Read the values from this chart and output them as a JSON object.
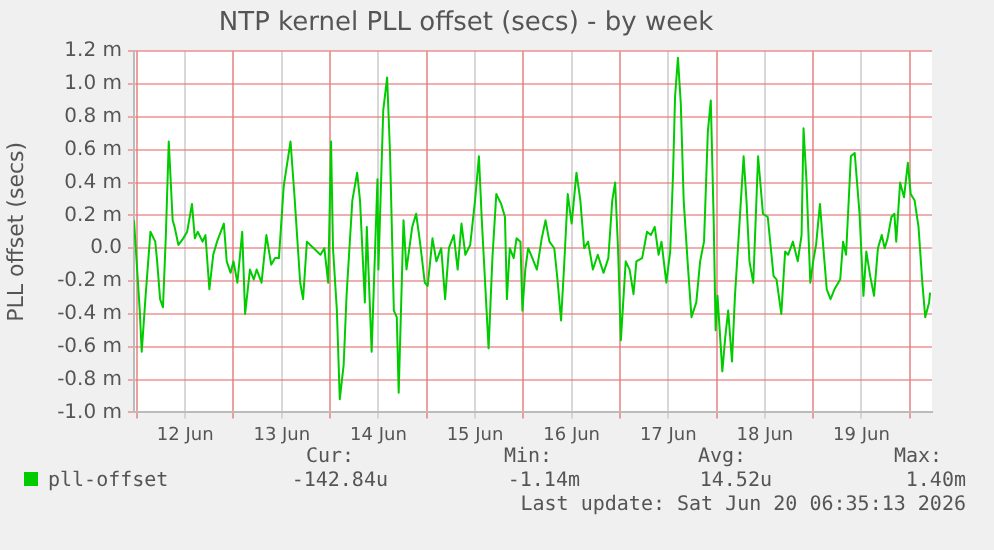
{
  "chart_data": {
    "type": "line",
    "title": "NTP kernel PLL offset (secs) - by week",
    "ylabel": "PLL offset (secs)",
    "xlim": [
      "2026-06-11T23:17",
      "2026-06-20T05:31"
    ],
    "xticks": [
      {
        "value": "2026-06-12T00:00",
        "label": null
      },
      {
        "value": "2026-06-12T12:00",
        "label": "12 Jun"
      },
      {
        "value": "2026-06-13T00:00",
        "label": null
      },
      {
        "value": "2026-06-13T12:00",
        "label": "13 Jun"
      },
      {
        "value": "2026-06-14T00:00",
        "label": null
      },
      {
        "value": "2026-06-14T12:00",
        "label": "14 Jun"
      },
      {
        "value": "2026-06-15T00:00",
        "label": null
      },
      {
        "value": "2026-06-15T12:00",
        "label": "15 Jun"
      },
      {
        "value": "2026-06-16T00:00",
        "label": null
      },
      {
        "value": "2026-06-16T12:00",
        "label": "16 Jun"
      },
      {
        "value": "2026-06-17T00:00",
        "label": null
      },
      {
        "value": "2026-06-17T12:00",
        "label": "17 Jun"
      },
      {
        "value": "2026-06-18T00:00",
        "label": null
      },
      {
        "value": "2026-06-18T12:00",
        "label": "18 Jun"
      },
      {
        "value": "2026-06-19T00:00",
        "label": null
      },
      {
        "value": "2026-06-19T12:00",
        "label": "19 Jun"
      },
      {
        "value": "2026-06-20T00:00",
        "label": null
      }
    ],
    "ylim": [
      -1.0,
      1.2
    ],
    "yticks": [
      {
        "value": -1.0,
        "label": "-1.0 m"
      },
      {
        "value": -0.8,
        "label": "-0.8 m"
      },
      {
        "value": -0.6,
        "label": "-0.6 m"
      },
      {
        "value": -0.4,
        "label": "-0.4 m"
      },
      {
        "value": -0.2,
        "label": "-0.2 m"
      },
      {
        "value": 0,
        "label": "0.0"
      },
      {
        "value": 0.2,
        "label": "0.2 m"
      },
      {
        "value": 0.4,
        "label": "0.4 m"
      },
      {
        "value": 0.6,
        "label": "0.6 m"
      },
      {
        "value": 0.8,
        "label": "0.8 m"
      },
      {
        "value": 1.0,
        "label": "1.0 m"
      },
      {
        "value": 1.2,
        "label": "1.2 m"
      }
    ],
    "grid": true,
    "legend": "bottom",
    "marker": "none",
    "line_style": "solid",
    "annotations": [
      "Cur:",
      "Min:",
      "Avg:",
      "Max:",
      "-142.84u",
      "-1.14m",
      "14.52u",
      "1.40m",
      "Last update: Sat Jun 20 06:35:13 2026"
    ],
    "series": [
      {
        "name": "pll-offset",
        "color": "#00cc00",
        "x": [
          "2026-06-11T23:17",
          "2026-06-12T00:43",
          "2026-06-12T01:12",
          "2026-06-12T02:10",
          "2026-06-12T03:22",
          "2026-06-12T04:34",
          "2026-06-12T05:02",
          "2026-06-12T05:46",
          "2026-06-12T06:29",
          "2026-06-12T07:12",
          "2026-06-12T07:55",
          "2026-06-12T08:53",
          "2026-06-12T09:22",
          "2026-06-12T10:19",
          "2026-06-12T11:31",
          "2026-06-12T12:29",
          "2026-06-12T13:41",
          "2026-06-12T14:24",
          "2026-06-12T15:07",
          "2026-06-12T16:19",
          "2026-06-12T17:02",
          "2026-06-12T18:00",
          "2026-06-12T18:58",
          "2026-06-12T19:55",
          "2026-06-12T21:36",
          "2026-06-12T22:19",
          "2026-06-12T23:17",
          "2026-06-13T00:00",
          "2026-06-13T00:58",
          "2026-06-13T02:10",
          "2026-06-13T02:53",
          "2026-06-13T04:05",
          "2026-06-13T05:02",
          "2026-06-13T05:46",
          "2026-06-13T06:58",
          "2026-06-13T08:10",
          "2026-06-13T09:22",
          "2026-06-13T10:19",
          "2026-06-13T11:17",
          "2026-06-13T12:29",
          "2026-06-13T14:10",
          "2026-06-13T15:07",
          "2026-06-13T16:34",
          "2026-06-13T17:17",
          "2026-06-13T18:14",
          "2026-06-13T19:55",
          "2026-06-13T21:36",
          "2026-06-13T22:34",
          "2026-06-13T23:31",
          "2026-06-14T00:14",
          "2026-06-14T00:43",
          "2026-06-14T01:41",
          "2026-06-14T02:24",
          "2026-06-14T03:22",
          "2026-06-14T04:05",
          "2026-06-14T05:31",
          "2026-06-14T06:43",
          "2026-06-14T07:26",
          "2026-06-14T08:38",
          "2026-06-14T09:07",
          "2026-06-14T10:19",
          "2026-06-14T11:46",
          "2026-06-14T12:00",
          "2026-06-14T13:12",
          "2026-06-14T14:10",
          "2026-06-14T14:53",
          "2026-06-14T15:50",
          "2026-06-14T16:34",
          "2026-06-14T17:02",
          "2026-06-14T18:14",
          "2026-06-14T18:58",
          "2026-06-14T20:24",
          "2026-06-14T21:22",
          "2026-06-14T22:19",
          "2026-06-14T23:31",
          "2026-06-15T00:14",
          "2026-06-15T01:26",
          "2026-06-15T02:24",
          "2026-06-15T03:36",
          "2026-06-15T04:34",
          "2026-06-15T05:31",
          "2026-06-15T06:43",
          "2026-06-15T07:41",
          "2026-06-15T08:38",
          "2026-06-15T09:36",
          "2026-06-15T10:48",
          "2026-06-15T12:00",
          "2026-06-15T12:58",
          "2026-06-15T13:41",
          "2026-06-15T15:22",
          "2026-06-15T16:19",
          "2026-06-15T17:17",
          "2026-06-15T18:29",
          "2026-06-15T19:26",
          "2026-06-15T19:55",
          "2026-06-15T20:38",
          "2026-06-15T21:36",
          "2026-06-15T22:19",
          "2026-06-15T23:17",
          "2026-06-15T23:46",
          "2026-06-16T00:29",
          "2026-06-16T01:12",
          "2026-06-16T01:55",
          "2026-06-16T03:22",
          "2026-06-16T04:34",
          "2026-06-16T05:31",
          "2026-06-16T06:29",
          "2026-06-16T07:41",
          "2026-06-16T08:24",
          "2026-06-16T09:22",
          "2026-06-16T10:05",
          "2026-06-16T11:02",
          "2026-06-16T12:00",
          "2026-06-16T13:12",
          "2026-06-16T14:10",
          "2026-06-16T15:07",
          "2026-06-16T16:05",
          "2026-06-16T17:17",
          "2026-06-16T18:29",
          "2026-06-16T19:55",
          "2026-06-16T21:07",
          "2026-06-16T22:05",
          "2026-06-16T22:48",
          "2026-06-16T23:31",
          "2026-06-17T00:14",
          "2026-06-17T01:26",
          "2026-06-17T02:24",
          "2026-06-17T03:22",
          "2026-06-17T04:05",
          "2026-06-17T05:31",
          "2026-06-17T06:43",
          "2026-06-17T07:41",
          "2026-06-17T08:38",
          "2026-06-17T09:36",
          "2026-06-17T10:19",
          "2026-06-17T11:31",
          "2026-06-17T12:29",
          "2026-06-17T13:12",
          "2026-06-17T13:41",
          "2026-06-17T14:24",
          "2026-06-17T15:07",
          "2026-06-17T15:50",
          "2026-06-17T16:48",
          "2026-06-17T17:46",
          "2026-06-17T18:58",
          "2026-06-17T19:55",
          "2026-06-17T20:53",
          "2026-06-17T21:50",
          "2026-06-17T22:34",
          "2026-06-17T23:17",
          "2026-06-17T23:46",
          "2026-06-18T00:14",
          "2026-06-18T01:26",
          "2026-06-18T02:10",
          "2026-06-18T02:53",
          "2026-06-18T03:50",
          "2026-06-18T04:34",
          "2026-06-18T05:31",
          "2026-06-18T06:43",
          "2026-06-18T07:26",
          "2026-06-18T08:10",
          "2026-06-18T09:07",
          "2026-06-18T10:19",
          "2026-06-18T11:31",
          "2026-06-18T12:43",
          "2026-06-18T14:10",
          "2026-06-18T14:53",
          "2026-06-18T16:05",
          "2026-06-18T17:02",
          "2026-06-18T17:46",
          "2026-06-18T18:58",
          "2026-06-18T20:10",
          "2026-06-18T21:07",
          "2026-06-18T21:36",
          "2026-06-18T22:19",
          "2026-06-18T23:17",
          "2026-06-19T00:00",
          "2026-06-19T00:43",
          "2026-06-19T01:41",
          "2026-06-19T02:24",
          "2026-06-19T03:22",
          "2026-06-19T04:19",
          "2026-06-19T05:17",
          "2026-06-19T06:43",
          "2026-06-19T07:26",
          "2026-06-19T08:10",
          "2026-06-19T09:22",
          "2026-06-19T10:19",
          "2026-06-19T11:31",
          "2026-06-19T12:29",
          "2026-06-19T13:12",
          "2026-06-19T14:10",
          "2026-06-19T15:07",
          "2026-06-19T16:05",
          "2026-06-19T17:02",
          "2026-06-19T17:46",
          "2026-06-19T18:29",
          "2026-06-19T19:26",
          "2026-06-19T20:10",
          "2026-06-19T20:38",
          "2026-06-19T21:36",
          "2026-06-19T22:34",
          "2026-06-19T23:31",
          "2026-06-20T00:14",
          "2026-06-20T01:12",
          "2026-06-20T02:10",
          "2026-06-20T03:07",
          "2026-06-20T03:50",
          "2026-06-20T04:48",
          "2026-06-20T05:02"
        ],
        "values": [
          0.17,
          -0.38,
          -0.63,
          -0.29,
          0.1,
          0.04,
          -0.08,
          -0.31,
          -0.36,
          0.08,
          0.65,
          0.17,
          0.13,
          0.02,
          0.06,
          0.1,
          0.27,
          0.06,
          0.1,
          0.04,
          0.08,
          -0.25,
          -0.04,
          0.04,
          0.15,
          -0.08,
          -0.15,
          -0.08,
          -0.21,
          0.1,
          -0.4,
          -0.13,
          -0.19,
          -0.13,
          -0.21,
          0.08,
          -0.1,
          -0.06,
          -0.06,
          0.38,
          0.65,
          0.33,
          -0.21,
          -0.31,
          0.04,
          0.0,
          -0.04,
          0.0,
          -0.21,
          0.65,
          0.0,
          -0.38,
          -0.92,
          -0.71,
          -0.29,
          0.29,
          0.46,
          0.29,
          -0.33,
          0.13,
          -0.63,
          0.42,
          -0.13,
          0.84,
          1.04,
          0.58,
          -0.38,
          -0.42,
          -0.88,
          0.17,
          -0.13,
          0.13,
          0.21,
          0.04,
          -0.21,
          -0.23,
          0.06,
          -0.08,
          0.0,
          -0.31,
          0.0,
          0.08,
          -0.13,
          0.15,
          -0.04,
          0.02,
          0.29,
          0.56,
          0.17,
          -0.61,
          -0.06,
          0.33,
          0.27,
          0.19,
          -0.31,
          0.0,
          -0.06,
          0.06,
          0.04,
          -0.38,
          -0.13,
          0.0,
          -0.04,
          -0.13,
          0.06,
          0.17,
          0.04,
          0.0,
          -0.17,
          -0.44,
          -0.13,
          0.33,
          0.15,
          0.46,
          0.29,
          0.0,
          0.04,
          -0.13,
          -0.04,
          -0.15,
          -0.06,
          0.29,
          0.4,
          0.0,
          -0.56,
          -0.08,
          -0.13,
          -0.28,
          -0.08,
          -0.06,
          0.1,
          0.08,
          0.13,
          -0.04,
          0.04,
          -0.21,
          -0.02,
          0.46,
          0.92,
          1.16,
          0.88,
          0.29,
          -0.08,
          -0.42,
          -0.33,
          -0.08,
          0.04,
          0.71,
          0.9,
          0.17,
          -0.5,
          -0.29,
          -0.75,
          -0.54,
          -0.38,
          -0.69,
          -0.29,
          0.08,
          0.56,
          0.29,
          -0.08,
          -0.21,
          0.56,
          0.21,
          0.19,
          -0.17,
          -0.19,
          -0.4,
          -0.02,
          -0.04,
          0.04,
          -0.08,
          0.08,
          0.73,
          0.42,
          -0.21,
          -0.08,
          0.02,
          0.27,
          0.04,
          -0.25,
          -0.31,
          -0.25,
          -0.19,
          0.04,
          -0.04,
          0.56,
          0.58,
          0.21,
          -0.29,
          -0.02,
          -0.17,
          -0.29,
          0.0,
          0.08,
          0.0,
          0.06,
          0.19,
          0.21,
          0.04,
          0.4,
          0.31,
          0.52,
          0.33,
          0.29,
          0.13,
          -0.21,
          -0.42,
          -0.33,
          -0.27
        ]
      }
    ]
  }
}
